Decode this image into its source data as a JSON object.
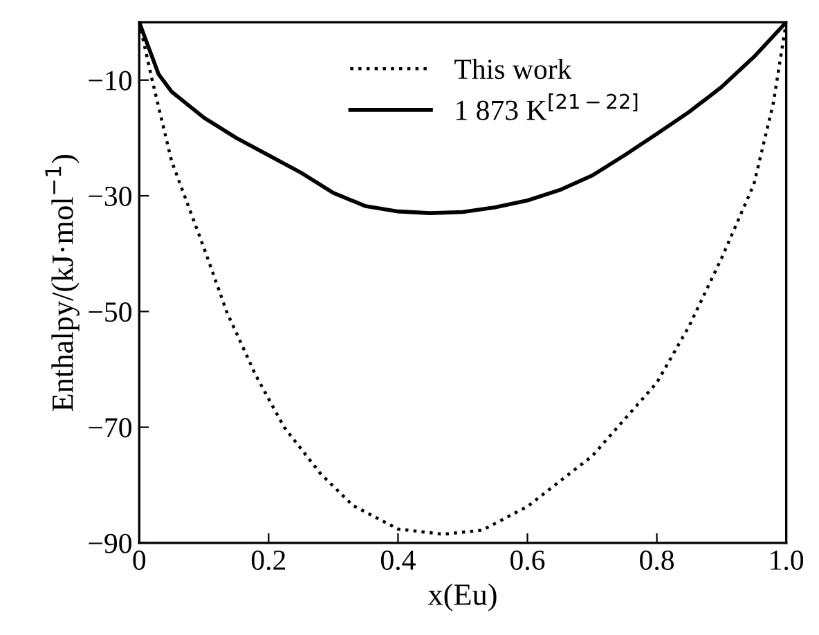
{
  "chart_data": {
    "type": "line",
    "xlabel": "x(Eu)",
    "ylabel": "Enthalpy/(kJ·mol$^{−1}$)",
    "xlim": [
      0,
      1
    ],
    "ylim": [
      -90,
      0
    ],
    "xticks": [
      0,
      0.2,
      0.4,
      0.6,
      0.8,
      {
        "value": 1,
        "label": "1.0"
      }
    ],
    "yticks": [
      {
        "value": -10,
        "label": "−10"
      },
      {
        "value": -30,
        "label": "−30"
      },
      {
        "value": -50,
        "label": "−50"
      },
      {
        "value": -70,
        "label": "−70"
      },
      {
        "value": -90,
        "label": "−90"
      }
    ],
    "grid": false,
    "legend": "top",
    "marker": "none",
    "series": [
      {
        "name": "This work",
        "color": "#000000",
        "line_style": "dotted",
        "x": [
          0,
          0.02,
          0.05,
          0.07,
          0.1,
          0.135,
          0.18,
          0.224,
          0.28,
          0.33,
          0.4,
          0.47,
          0.53,
          0.6,
          0.7,
          0.8,
          0.85,
          0.9,
          0.95,
          0.98,
          1
        ],
        "values": [
          0,
          -10,
          -24,
          -30,
          -39,
          -50,
          -61,
          -70,
          -78,
          -83.5,
          -87.6,
          -88.5,
          -87.8,
          -83.7,
          -75,
          -62.3,
          -52.5,
          -40.8,
          -28,
          -14,
          0
        ]
      },
      {
        "name": "1 873 K$^{[21−22]}$",
        "color": "#000000",
        "line_style": "solid",
        "x": [
          0,
          0.03,
          0.05,
          0.1,
          0.15,
          0.2,
          0.25,
          0.3,
          0.35,
          0.4,
          0.45,
          0.5,
          0.55,
          0.6,
          0.65,
          0.7,
          0.75,
          0.8,
          0.85,
          0.9,
          0.95,
          1
        ],
        "values": [
          0,
          -9,
          -12,
          -16.5,
          -20,
          -23,
          -26,
          -29.5,
          -31.8,
          -32.7,
          -33,
          -32.8,
          -32,
          -30.8,
          -29,
          -26.5,
          -23,
          -19.3,
          -15.5,
          -11.2,
          -6,
          0
        ]
      }
    ]
  }
}
